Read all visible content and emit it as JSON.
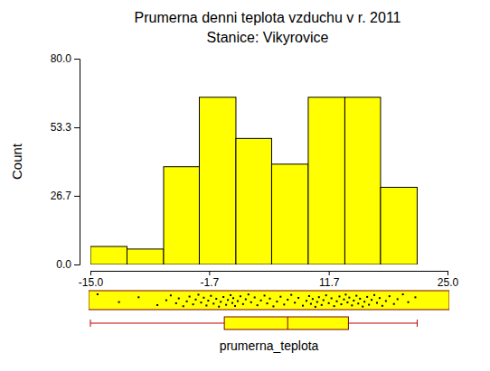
{
  "chart_data": {
    "type": "histogram",
    "title": "Prumerna denni teplota vzduchu v r. 2011",
    "subtitle": "Stanice: Vikyrovice",
    "x_label": "prumerna_teplota",
    "y_label": "Count",
    "bins": [
      -15.0,
      -10.9,
      -6.8,
      -2.8,
      1.3,
      5.3,
      9.4,
      13.5,
      17.5,
      21.6
    ],
    "counts": [
      7,
      6,
      38,
      65,
      49,
      39,
      65,
      65,
      30
    ],
    "color": "#ffff00",
    "xlim": [
      -15,
      25
    ],
    "xticks": [
      {
        "value": -15,
        "label": "-15.0"
      },
      -1.7,
      11.7,
      {
        "value": 25,
        "label": "25.0"
      }
    ],
    "ylim": [
      0,
      80
    ],
    "yticks": [
      {
        "value": 0,
        "label": "0.0"
      },
      26.7,
      53.3,
      {
        "value": 80,
        "label": "80.0"
      }
    ],
    "points": [
      -14.2,
      -11.8,
      -9.6,
      -7.5,
      -6.5,
      -6.0,
      -5.4,
      -5.1,
      -4.6,
      -4.2,
      -3.9,
      -3.5,
      -3.2,
      -2.9,
      -2.6,
      -2.3,
      -2.0,
      -1.8,
      -1.5,
      -1.2,
      -0.9,
      -0.6,
      -0.4,
      -0.1,
      0.2,
      0.4,
      0.7,
      0.9,
      1.0,
      1.2,
      1.5,
      1.8,
      2.1,
      2.4,
      2.7,
      3.0,
      3.4,
      3.7,
      4.1,
      4.5,
      4.8,
      5.1,
      5.5,
      5.9,
      6.3,
      6.7,
      7.1,
      7.5,
      7.9,
      8.3,
      8.8,
      9.2,
      9.5,
      9.7,
      9.9,
      10.2,
      10.4,
      10.6,
      10.9,
      11.1,
      11.4,
      11.7,
      12.0,
      12.3,
      12.6,
      12.9,
      13.1,
      13.4,
      13.6,
      13.8,
      14.0,
      14.3,
      14.5,
      14.8,
      15.0,
      15.2,
      15.5,
      15.7,
      16.0,
      16.2,
      16.5,
      16.8,
      17.1,
      17.4,
      17.7,
      18.1,
      18.5,
      19.0,
      19.4,
      20.0,
      20.6,
      21.4
    ],
    "box": {
      "min": -15.0,
      "q1": 0.0,
      "median": 7.1,
      "q3": 13.9,
      "max": 21.6
    }
  }
}
